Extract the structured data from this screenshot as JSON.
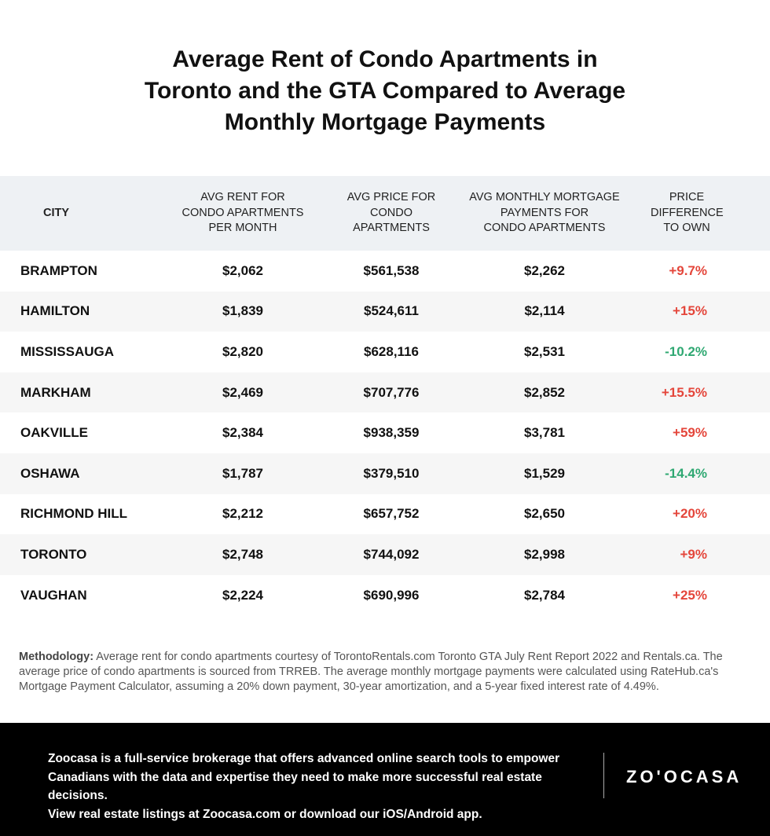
{
  "title": [
    "Average Rent of Condo Apartments in",
    "Toronto and the GTA Compared to Average",
    "Monthly Mortgage Payments"
  ],
  "headers": {
    "city": "CITY",
    "rent": [
      "AVG RENT FOR",
      "CONDO APARTMENTS",
      "PER MONTH"
    ],
    "price": [
      "AVG PRICE FOR",
      "CONDO",
      "APARTMENTS"
    ],
    "mortgage": [
      "AVG MONTHLY MORTGAGE",
      "PAYMENTS FOR",
      "CONDO APARTMENTS"
    ],
    "diff": [
      "PRICE",
      "DIFFERENCE",
      "TO OWN"
    ]
  },
  "rows": [
    {
      "city": "BRAMPTON",
      "rent": "$2,062",
      "price": "$561,538",
      "mortgage": "$2,262",
      "diff": "+9.7%"
    },
    {
      "city": "HAMILTON",
      "rent": "$1,839",
      "price": "$524,611",
      "mortgage": "$2,114",
      "diff": "+15%"
    },
    {
      "city": "MISSISSAUGA",
      "rent": "$2,820",
      "price": "$628,116",
      "mortgage": "$2,531",
      "diff": "-10.2%"
    },
    {
      "city": "MARKHAM",
      "rent": "$2,469",
      "price": "$707,776",
      "mortgage": "$2,852",
      "diff": "+15.5%"
    },
    {
      "city": "OAKVILLE",
      "rent": "$2,384",
      "price": "$938,359",
      "mortgage": "$3,781",
      "diff": "+59%"
    },
    {
      "city": "OSHAWA",
      "rent": "$1,787",
      "price": "$379,510",
      "mortgage": "$1,529",
      "diff": "-14.4%"
    },
    {
      "city": "RICHMOND HILL",
      "rent": "$2,212",
      "price": "$657,752",
      "mortgage": "$2,650",
      "diff": "+20%"
    },
    {
      "city": "TORONTO",
      "rent": "$2,748",
      "price": "$744,092",
      "mortgage": "$2,998",
      "diff": "+9%"
    },
    {
      "city": "VAUGHAN",
      "rent": "$2,224",
      "price": "$690,996",
      "mortgage": "$2,784",
      "diff": "+25%"
    }
  ],
  "colors": {
    "positive": "#e4463b",
    "negative": "#2fa872",
    "header_bg": "#eef1f4",
    "footer_bg": "#000000"
  },
  "methodology": {
    "label": "Methodology:",
    "text": " Average rent for condo apartments courtesy of TorontoRentals.com Toronto GTA July Rent Report 2022 and Rentals.ca. The average price of condo apartments is sourced from TRREB. The average monthly mortgage payments were calculated using RateHub.ca's Mortgage Payment Calculator, assuming a 20% down payment, 30-year amortization, and a 5-year fixed interest rate of 4.49%."
  },
  "footer": {
    "about": "Zoocasa is a full-service brokerage that offers advanced online search tools to empower Canadians with the data and expertise they need to make more successful real estate decisions.",
    "cta": "View real estate listings at Zoocasa.com or download our iOS/Android app.",
    "logo": "ZO'OCASA"
  }
}
